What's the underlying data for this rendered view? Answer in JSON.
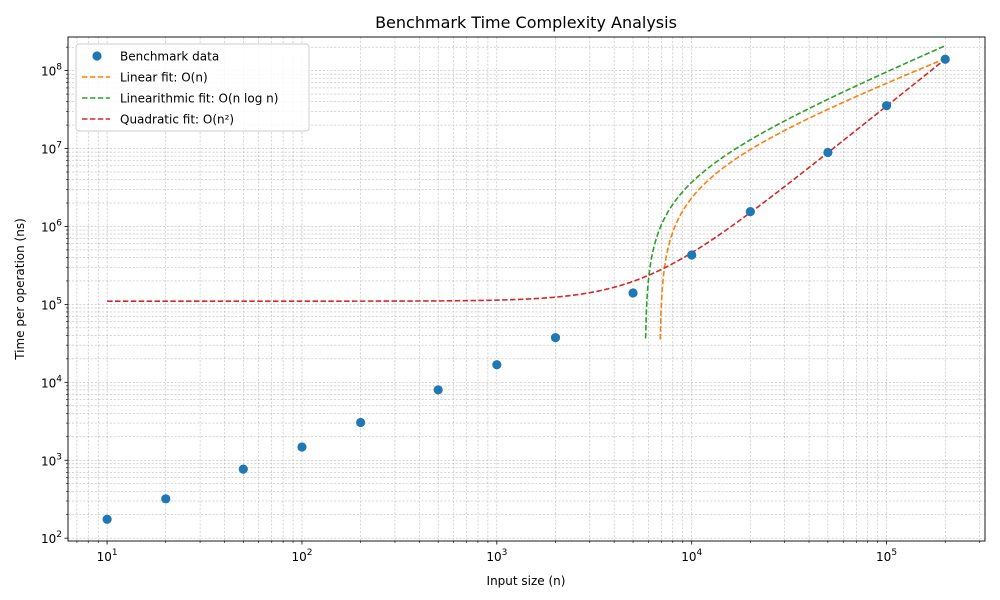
{
  "chart_data": {
    "type": "scatter",
    "title": "Benchmark Time Complexity Analysis",
    "xlabel": "Input size (n)",
    "ylabel": "Time per operation (ns)",
    "xscale": "log",
    "yscale": "log",
    "xlim": [
      6.3,
      320000
    ],
    "ylim": [
      92,
      270000000
    ],
    "grid": "both (major and minor)",
    "legend_position": "top-left",
    "x_ticks": [
      {
        "value": 10,
        "base": "10",
        "exp": "1"
      },
      {
        "value": 100,
        "base": "10",
        "exp": "2"
      },
      {
        "value": 1000,
        "base": "10",
        "exp": "3"
      },
      {
        "value": 10000,
        "base": "10",
        "exp": "4"
      },
      {
        "value": 100000,
        "base": "10",
        "exp": "5"
      }
    ],
    "y_ticks": [
      {
        "value": 100,
        "base": "10",
        "exp": "2"
      },
      {
        "value": 1000,
        "base": "10",
        "exp": "3"
      },
      {
        "value": 10000,
        "base": "10",
        "exp": "4"
      },
      {
        "value": 100000,
        "base": "10",
        "exp": "5"
      },
      {
        "value": 1000000,
        "base": "10",
        "exp": "6"
      },
      {
        "value": 10000000,
        "base": "10",
        "exp": "7"
      },
      {
        "value": 100000000,
        "base": "10",
        "exp": "8"
      }
    ],
    "series": [
      {
        "name": "Benchmark data",
        "kind": "points",
        "color": "#1f77b4",
        "x": [
          10,
          20,
          50,
          100,
          200,
          500,
          1000,
          2000,
          5000,
          10000,
          20000,
          50000,
          100000,
          200000
        ],
        "y": [
          175,
          320,
          770,
          1480,
          3050,
          8000,
          16800,
          37500,
          140000,
          430000,
          1550000,
          8900000,
          35500000,
          140000000
        ]
      },
      {
        "name": "Linear fit: O(n)",
        "kind": "line",
        "color": "#ff7f0e",
        "dash": "dashed",
        "fit": "linear",
        "coefficients": {
          "a": 737.6,
          "b": -5052000
        },
        "x_range": [
          10,
          200000
        ]
      },
      {
        "name": "Linearithmic fit: O(n log n)",
        "kind": "line",
        "color": "#2ca02c",
        "dash": "dashed",
        "fit": "nlogn",
        "coefficients": {
          "a": 60.47,
          "b": -4348000
        },
        "x_range": [
          10,
          200000
        ]
      },
      {
        "name": "Quadratic fit: O(n²)",
        "kind": "line",
        "color": "#d62728",
        "dash": "dashed",
        "fit": "quadratic",
        "coefficients": {
          "a": 0.003497,
          "b": 110000
        },
        "x_range": [
          10,
          200000
        ]
      }
    ]
  }
}
